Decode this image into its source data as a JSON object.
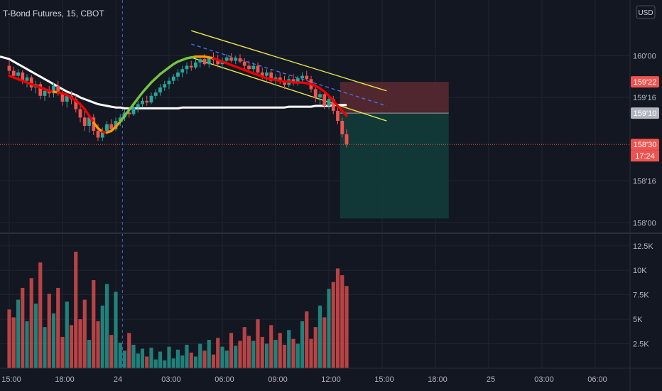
{
  "title": "T-Bond Futures, 15, CBOT",
  "currency": "USD",
  "colors": {
    "background": "#131722",
    "grid": "#1f2430",
    "up": "#26a69a",
    "down": "#ef5350",
    "ma_white": "#ffffff",
    "channel": "#e8e84a",
    "midline": "#4a6fe3",
    "stop_zone": "#5c2a30",
    "target_zone": "#123c3a",
    "text": "#b2b5be"
  },
  "chart_data": {
    "type": "candlestick",
    "price_axis": {
      "ticks": [
        "160'00",
        "159'16",
        "158'16",
        "158'00"
      ],
      "tick_values": [
        160.0,
        159.5,
        158.5,
        158.0
      ],
      "ylim": [
        157.9,
        160.6
      ]
    },
    "price_labels": [
      {
        "name": "stop",
        "text": "159'22",
        "value": 159.6875,
        "color": "#ef5350"
      },
      {
        "name": "entry",
        "text": "159'10",
        "value": 159.3125,
        "color": "#b2b5be"
      },
      {
        "name": "last",
        "text": "158'30",
        "value": 158.9375,
        "color": "#ef5350"
      }
    ],
    "countdown": "17:24",
    "volume_axis": {
      "ticks": [
        "12.5K",
        "10K",
        "7.5K",
        "5K",
        "2.5K"
      ],
      "tick_values": [
        12500,
        10000,
        7500,
        5000,
        2500
      ],
      "ylim": [
        0,
        13500
      ]
    },
    "time_axis": {
      "ticks": [
        "15:00",
        "18:00",
        "24",
        "03:00",
        "06:00",
        "09:00",
        "12:00",
        "15:00",
        "18:00",
        "25",
        "03:00",
        "06:00",
        "09:00"
      ],
      "tick_bars": [
        0,
        12,
        24,
        36,
        48,
        60,
        72,
        84,
        96,
        108,
        120,
        132,
        144
      ]
    },
    "candles_ohlc": [
      [
        159.88,
        159.94,
        159.78,
        159.82
      ],
      [
        159.82,
        159.87,
        159.72,
        159.76
      ],
      [
        159.76,
        159.84,
        159.7,
        159.8
      ],
      [
        159.8,
        159.83,
        159.66,
        159.7
      ],
      [
        159.7,
        159.78,
        159.62,
        159.74
      ],
      [
        159.74,
        159.77,
        159.58,
        159.62
      ],
      [
        159.62,
        159.7,
        159.55,
        159.66
      ],
      [
        159.66,
        159.69,
        159.48,
        159.52
      ],
      [
        159.52,
        159.62,
        159.46,
        159.58
      ],
      [
        159.58,
        159.64,
        159.5,
        159.55
      ],
      [
        159.55,
        159.68,
        159.5,
        159.64
      ],
      [
        159.64,
        159.7,
        159.52,
        159.56
      ],
      [
        159.56,
        159.6,
        159.4,
        159.45
      ],
      [
        159.45,
        159.56,
        159.38,
        159.52
      ],
      [
        159.52,
        159.58,
        159.42,
        159.48
      ],
      [
        159.48,
        159.53,
        159.32,
        159.36
      ],
      [
        159.36,
        159.44,
        159.2,
        159.26
      ],
      [
        159.26,
        159.34,
        159.1,
        159.16
      ],
      [
        159.16,
        159.3,
        159.08,
        159.26
      ],
      [
        159.26,
        159.3,
        159.05,
        159.1
      ],
      [
        159.1,
        159.18,
        158.98,
        159.02
      ],
      [
        159.02,
        159.14,
        158.98,
        159.1
      ],
      [
        159.1,
        159.22,
        159.06,
        159.18
      ],
      [
        159.18,
        159.24,
        159.08,
        159.12
      ],
      [
        159.12,
        159.26,
        159.1,
        159.22
      ],
      [
        159.22,
        159.3,
        159.16,
        159.26
      ],
      [
        159.26,
        159.36,
        159.22,
        159.32
      ],
      [
        159.32,
        159.38,
        159.26,
        159.3
      ],
      [
        159.3,
        159.42,
        159.28,
        159.38
      ],
      [
        159.38,
        159.46,
        159.32,
        159.42
      ],
      [
        159.42,
        159.5,
        159.38,
        159.46
      ],
      [
        159.46,
        159.52,
        159.4,
        159.44
      ],
      [
        159.44,
        159.56,
        159.42,
        159.52
      ],
      [
        159.52,
        159.6,
        159.48,
        159.56
      ],
      [
        159.56,
        159.66,
        159.52,
        159.62
      ],
      [
        159.62,
        159.7,
        159.58,
        159.66
      ],
      [
        159.66,
        159.74,
        159.6,
        159.7
      ],
      [
        159.7,
        159.78,
        159.66,
        159.75
      ],
      [
        159.75,
        159.84,
        159.7,
        159.8
      ],
      [
        159.8,
        159.88,
        159.74,
        159.84
      ],
      [
        159.84,
        159.92,
        159.78,
        159.88
      ],
      [
        159.88,
        159.94,
        159.82,
        159.86
      ],
      [
        159.86,
        159.96,
        159.84,
        159.92
      ],
      [
        159.92,
        160.0,
        159.86,
        159.96
      ],
      [
        159.96,
        160.02,
        159.88,
        159.9
      ],
      [
        159.9,
        160.0,
        159.86,
        159.97
      ],
      [
        159.97,
        160.04,
        159.9,
        159.95
      ],
      [
        159.95,
        160.01,
        159.86,
        159.9
      ],
      [
        159.9,
        159.98,
        159.84,
        159.94
      ],
      [
        159.94,
        160.02,
        159.9,
        159.98
      ],
      [
        159.98,
        160.03,
        159.92,
        159.94
      ],
      [
        159.94,
        160.0,
        159.9,
        159.97
      ],
      [
        159.97,
        160.02,
        159.91,
        159.93
      ],
      [
        159.93,
        159.97,
        159.84,
        159.88
      ],
      [
        159.88,
        159.94,
        159.8,
        159.84
      ],
      [
        159.84,
        159.92,
        159.78,
        159.88
      ],
      [
        159.88,
        159.92,
        159.76,
        159.8
      ],
      [
        159.8,
        159.86,
        159.72,
        159.76
      ],
      [
        159.76,
        159.84,
        159.7,
        159.8
      ],
      [
        159.8,
        159.84,
        159.66,
        159.7
      ],
      [
        159.7,
        159.78,
        159.64,
        159.74
      ],
      [
        159.74,
        159.8,
        159.66,
        159.7
      ],
      [
        159.7,
        159.76,
        159.6,
        159.65
      ],
      [
        159.65,
        159.76,
        159.62,
        159.72
      ],
      [
        159.72,
        159.78,
        159.64,
        159.68
      ],
      [
        159.68,
        159.76,
        159.64,
        159.73
      ],
      [
        159.73,
        159.8,
        159.68,
        159.76
      ],
      [
        159.76,
        159.82,
        159.7,
        159.72
      ],
      [
        159.72,
        159.76,
        159.56,
        159.6
      ],
      [
        159.6,
        159.66,
        159.44,
        159.5
      ],
      [
        159.5,
        159.58,
        159.42,
        159.54
      ],
      [
        159.54,
        159.58,
        159.36,
        159.4
      ],
      [
        159.4,
        159.52,
        159.36,
        159.48
      ],
      [
        159.48,
        159.52,
        159.3,
        159.34
      ],
      [
        159.34,
        159.38,
        159.18,
        159.22
      ],
      [
        159.22,
        159.26,
        159.02,
        159.06
      ],
      [
        159.06,
        159.12,
        158.9,
        158.94
      ]
    ],
    "volume_values": [
      6000,
      5200,
      7000,
      8200,
      4800,
      9200,
      6600,
      10800,
      4200,
      7600,
      5600,
      8200,
      3200,
      6800,
      4400,
      11900,
      5000,
      7000,
      2900,
      9000,
      4800,
      6400,
      8600,
      3400,
      7800,
      2600,
      1800,
      3600,
      2400,
      1500,
      2000,
      1200,
      2100,
      900,
      1700,
      800,
      2200,
      1000,
      1900,
      1300,
      2400,
      1600,
      1200,
      2500,
      1800,
      2900,
      1400,
      3100,
      2200,
      1800,
      3600,
      2300,
      2800,
      4200,
      3300,
      2800,
      5000,
      3200,
      2500,
      4400,
      2900,
      3600,
      2400,
      3900,
      3000,
      2500,
      4800,
      5800,
      3000,
      4200,
      6400,
      5200,
      8100,
      8800,
      10200,
      9500,
      8400
    ],
    "white_ma": [
      159.96,
      159.93,
      159.9,
      159.87,
      159.84,
      159.81,
      159.78,
      159.75,
      159.72,
      159.69,
      159.66,
      159.63,
      159.6,
      159.57,
      159.55,
      159.53,
      159.5,
      159.48,
      159.46,
      159.44,
      159.42,
      159.41,
      159.4,
      159.39,
      159.38,
      159.38,
      159.37,
      159.37,
      159.37,
      159.37,
      159.37,
      159.37,
      159.37,
      159.37,
      159.37,
      159.37,
      159.37,
      159.37,
      159.37,
      159.38,
      159.38,
      159.38,
      159.38,
      159.38,
      159.38,
      159.38,
      159.38,
      159.38,
      159.38,
      159.38,
      159.38,
      159.38,
      159.38,
      159.38,
      159.38,
      159.38,
      159.38,
      159.38,
      159.38,
      159.38,
      159.38,
      159.38,
      159.38,
      159.39,
      159.39,
      159.39,
      159.39,
      159.39,
      159.39,
      159.4,
      159.4,
      159.4,
      159.4,
      159.41,
      159.41,
      159.41,
      159.41
    ],
    "hull_ma": [
      159.76,
      159.74,
      159.72,
      159.7,
      159.68,
      159.66,
      159.64,
      159.62,
      159.6,
      159.58,
      159.57,
      159.56,
      159.55,
      159.53,
      159.5,
      159.46,
      159.42,
      159.36,
      159.28,
      159.2,
      159.13,
      159.09,
      159.08,
      159.1,
      159.15,
      159.21,
      159.28,
      159.35,
      159.42,
      159.49,
      159.56,
      159.62,
      159.68,
      159.73,
      159.78,
      159.82,
      159.86,
      159.9,
      159.93,
      159.95,
      159.97,
      159.98,
      159.99,
      159.99,
      159.99,
      159.98,
      159.97,
      159.95,
      159.93,
      159.91,
      159.89,
      159.87,
      159.85,
      159.83,
      159.81,
      159.79,
      159.77,
      159.75,
      159.73,
      159.72,
      159.71,
      159.7,
      159.69,
      159.69,
      159.68,
      159.68,
      159.68,
      159.67,
      159.66,
      159.64,
      159.61,
      159.57,
      159.52,
      159.46,
      159.4,
      159.34,
      159.28
    ],
    "hull_colors": [
      "#ef0000",
      "#ef0000",
      "#ef0000",
      "#ef0000",
      "#ef0000",
      "#ef0000",
      "#ef0000",
      "#ef0000",
      "#ef0000",
      "#ef0000",
      "#ff9800",
      "#ef0000",
      "#ef0000",
      "#ef0000",
      "#ef0000",
      "#ef0000",
      "#ef0000",
      "#ef0000",
      "#ef0000",
      "#ff9800",
      "#ff9800",
      "#ef0000",
      "#ff9800",
      "#ff9800",
      "#ff9800",
      "#76c442",
      "#76c442",
      "#76c442",
      "#76c442",
      "#76c442",
      "#76c442",
      "#76c442",
      "#76c442",
      "#76c442",
      "#76c442",
      "#76c442",
      "#76c442",
      "#76c442",
      "#76c442",
      "#76c442",
      "#76c442",
      "#76c442",
      "#ff9800",
      "#ff9800",
      "#ff9800",
      "#ff9800",
      "#ef0000",
      "#ef0000",
      "#ef0000",
      "#ef0000",
      "#ef0000",
      "#ef0000",
      "#ef0000",
      "#ef0000",
      "#ef0000",
      "#ef0000",
      "#ef0000",
      "#ef0000",
      "#ef0000",
      "#ef0000",
      "#ef0000",
      "#ef0000",
      "#ef0000",
      "#ef0000",
      "#ef0000",
      "#ef0000",
      "#ef0000",
      "#ef0000",
      "#ef0000",
      "#ef0000",
      "#ef0000",
      "#ef0000",
      "#ef0000",
      "#ef0000",
      "#ef0000",
      "#ef0000",
      "#ef0000"
    ],
    "channel_lines": [
      {
        "name": "channel-upper",
        "from": [
          41,
          160.3
        ],
        "to": [
          85,
          159.58
        ],
        "color": "#e8e84a"
      },
      {
        "name": "channel-lower",
        "from": [
          41,
          159.98
        ],
        "to": [
          85,
          159.22
        ],
        "color": "#e8e84a"
      },
      {
        "name": "channel-mid",
        "from": [
          41,
          160.14
        ],
        "to": [
          85,
          159.4
        ],
        "color": "#4a6fe3",
        "dashed": true
      }
    ],
    "session_break_bar": 25.5,
    "position": {
      "type": "short",
      "entry": 159.3125,
      "stop": 159.6875,
      "target": 158.05,
      "from_bar": 75,
      "to_bar": 99
    }
  }
}
